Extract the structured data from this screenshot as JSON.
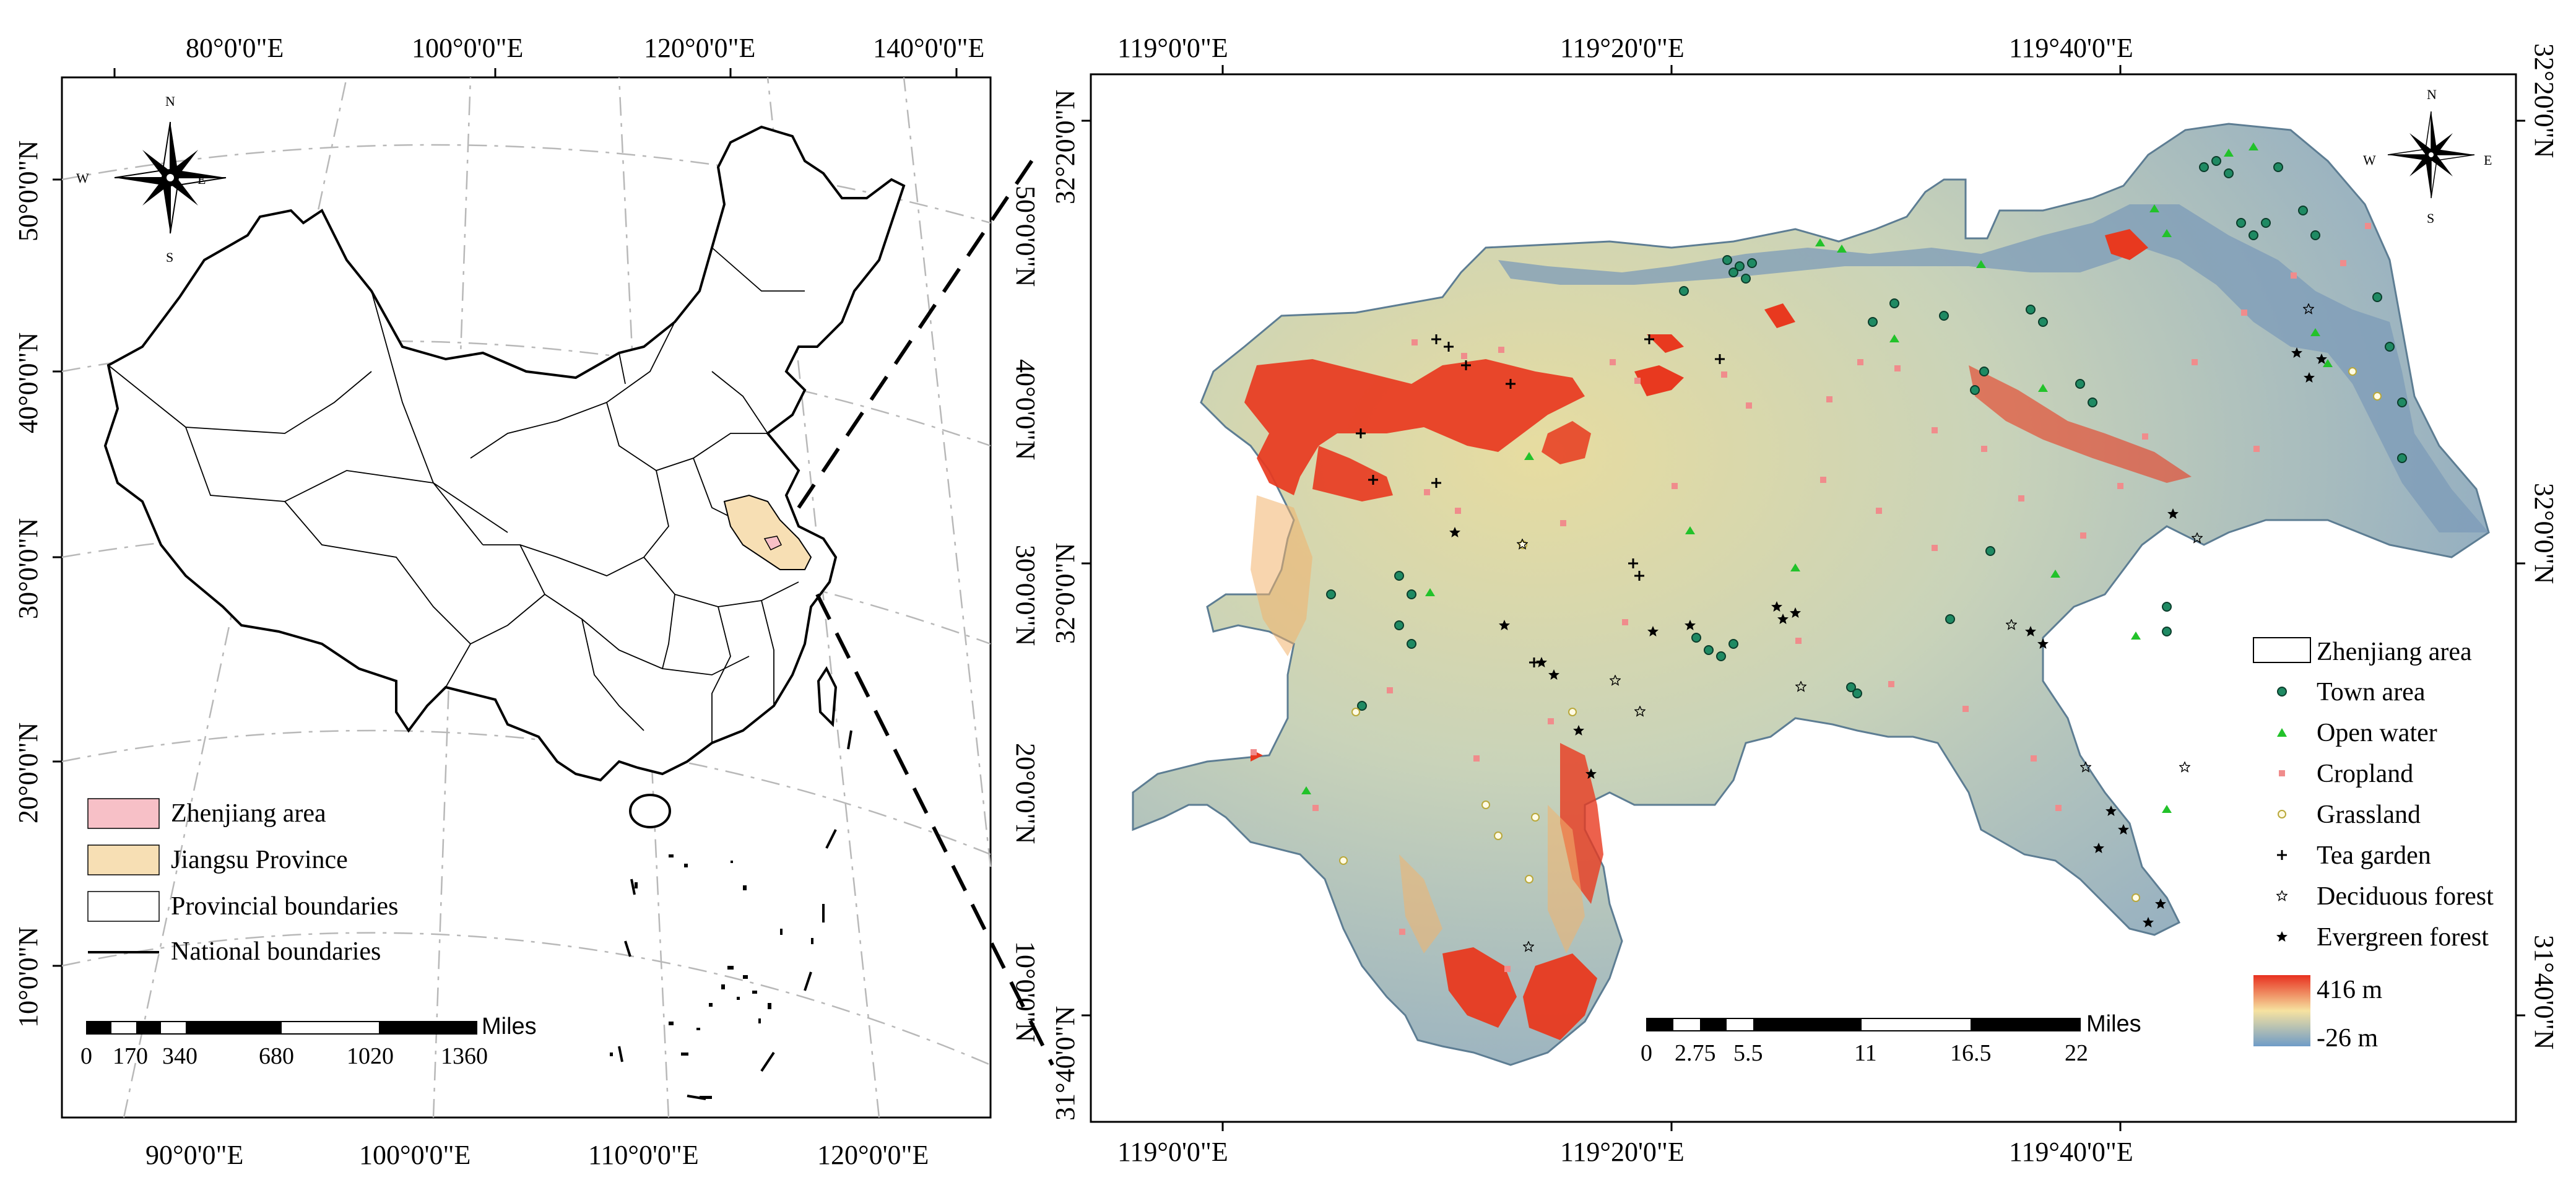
{
  "left_map": {
    "top_lon_labels": [
      "80°0'0\"E",
      "100°0'0\"E",
      "120°0'0\"E",
      "140°0'0\"E"
    ],
    "bottom_lon_labels": [
      "90°0'0\"E",
      "100°0'0\"E",
      "110°0'0\"E",
      "120°0'0\"E"
    ],
    "left_lat_labels": [
      "50°0'0\"N",
      "40°0'0\"N",
      "30°0'0\"N",
      "20°0'0\"N",
      "10°0'0\"N"
    ],
    "right_lat_labels": [
      "50°0'0\"N",
      "40°0'0\"N",
      "30°0'0\"N",
      "20°0'0\"N",
      "10°0'0\"N"
    ],
    "north_arrow": {
      "n": "N",
      "s": "S",
      "e": "E",
      "w": "W"
    },
    "legend": [
      {
        "label": "Zhenjiang area",
        "color": "#f7c0c7"
      },
      {
        "label": "Jiangsu Province",
        "color": "#f7dfb4"
      },
      {
        "label": "Provincial boundaries",
        "color": "#ffffff"
      },
      {
        "label": "National boundaries",
        "color": "#000000"
      }
    ],
    "scale": {
      "unit": "Miles",
      "ticks": [
        "0",
        "170",
        "340",
        "680",
        "1020",
        "1360"
      ]
    }
  },
  "right_map": {
    "top_lon_labels": [
      "119°0'0\"E",
      "119°20'0\"E",
      "119°40'0\"E"
    ],
    "bottom_lon_labels": [
      "119°0'0\"E",
      "119°20'0\"E",
      "119°40'0\"E"
    ],
    "left_lat_labels": [
      "32°20'0\"N",
      "32°0'0\"N",
      "31°40'0\"N"
    ],
    "right_lat_labels": [
      "32°20'0\"N",
      "32°0'0\"N",
      "31°40'0\"N"
    ],
    "north_arrow": {
      "n": "N",
      "s": "S",
      "e": "E",
      "w": "W"
    },
    "legend": [
      {
        "label": "Zhenjiang area",
        "symbol": "box",
        "color": "#ffffff"
      },
      {
        "label": "Town area",
        "symbol": "circle",
        "color": "#1f8a63"
      },
      {
        "label": "Open water",
        "symbol": "triangle",
        "color": "#22c22a"
      },
      {
        "label": "Cropland",
        "symbol": "square",
        "color": "#f08c8c"
      },
      {
        "label": "Grassland",
        "symbol": "dotcircle",
        "color": "#d8d28a"
      },
      {
        "label": "Tea garden",
        "symbol": "plus",
        "color": "#000000"
      },
      {
        "label": "Deciduous forest",
        "symbol": "openstar",
        "color": "#000000"
      },
      {
        "label": "Evergreen forest",
        "symbol": "star",
        "color": "#000000"
      }
    ],
    "elevation": {
      "max": "416 m",
      "min": "-26 m",
      "colors": [
        "#e8301f",
        "#f6e2a0",
        "#6f9cc7"
      ]
    },
    "scale": {
      "unit": "Miles",
      "ticks": [
        "0",
        "2.75",
        "5.5",
        "11",
        "16.5",
        "22"
      ]
    }
  }
}
